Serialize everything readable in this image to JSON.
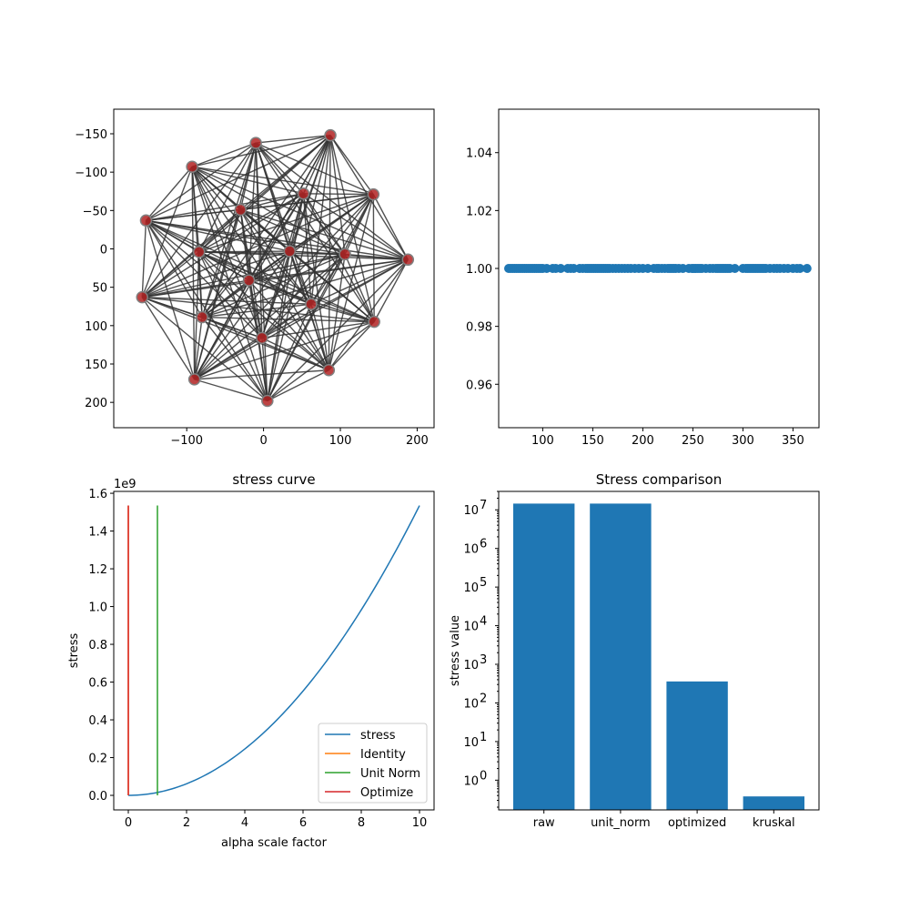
{
  "chart_data": [
    {
      "type": "network",
      "xlim": [
        -195,
        222
      ],
      "ylim": [
        233,
        -182
      ],
      "y_inverted": true,
      "xticks": [
        -100,
        0,
        100,
        200
      ],
      "yticks": [
        -150,
        -100,
        -50,
        0,
        50,
        100,
        150,
        200
      ],
      "node_color": "#b22222",
      "node_edge_color": "#808080",
      "edge_color": "#333333",
      "nodes": [
        [
          -10,
          -138
        ],
        [
          87,
          -148
        ],
        [
          -93,
          -107
        ],
        [
          52,
          -72
        ],
        [
          143,
          -71
        ],
        [
          -30,
          -51
        ],
        [
          -153,
          -37
        ],
        [
          34,
          3
        ],
        [
          -84,
          4
        ],
        [
          106,
          7
        ],
        [
          188,
          14
        ],
        [
          -19,
          41
        ],
        [
          62,
          72
        ],
        [
          -158,
          63
        ],
        [
          -80,
          89
        ],
        [
          144,
          95
        ],
        [
          -2,
          116
        ],
        [
          85,
          158
        ],
        [
          -90,
          170
        ],
        [
          5,
          198
        ]
      ],
      "edges": "fully connected (every pair of nodes)"
    },
    {
      "type": "scatter",
      "xlim": [
        56,
        376
      ],
      "ylim": [
        0.945,
        1.055
      ],
      "xticks": [
        100,
        150,
        200,
        250,
        300,
        350
      ],
      "yticks": [
        0.96,
        0.98,
        1.0,
        1.02,
        1.04
      ],
      "color": "#1f77b4",
      "y_value": 1.0,
      "x": [
        66,
        68,
        70,
        72,
        74,
        76,
        78,
        80,
        82,
        84,
        86,
        88,
        90,
        92,
        94,
        96,
        98,
        100,
        104,
        110,
        113,
        118,
        125,
        128,
        131,
        137,
        140,
        143,
        145,
        147,
        149,
        151,
        153,
        155,
        157,
        159,
        161,
        163,
        165,
        167,
        170,
        173,
        176,
        179,
        182,
        185,
        188,
        192,
        196,
        200,
        205,
        211,
        214,
        216,
        219,
        222,
        225,
        227,
        229,
        231,
        233,
        236,
        240,
        246,
        249,
        251,
        253,
        255,
        257,
        259,
        263,
        267,
        270,
        273,
        275,
        277,
        279,
        281,
        283,
        285,
        287,
        292,
        300,
        303,
        305,
        307,
        309,
        311,
        313,
        315,
        317,
        319,
        321,
        323,
        327,
        331,
        334,
        337,
        341,
        345,
        350,
        354,
        357,
        364
      ]
    },
    {
      "type": "line",
      "title": "stress curve",
      "xlabel": "alpha scale factor",
      "ylabel": "stress",
      "y_offset_label": "1e9",
      "xlim": [
        -0.5,
        10.5
      ],
      "ylim": [
        -0.077,
        1.61
      ],
      "xticks": [
        0,
        2,
        4,
        6,
        8,
        10
      ],
      "yticks": [
        "0.0",
        "0.2",
        "0.4",
        "0.6",
        "0.8",
        "1.0",
        "1.2",
        "1.4",
        "1.6"
      ],
      "series": [
        {
          "name": "stress",
          "color": "#1f77b4",
          "kind": "curve",
          "coefficient": 0.01535,
          "x_range": [
            0,
            10
          ]
        },
        {
          "name": "Identity",
          "color": "#ff7f0e",
          "kind": "vline",
          "x": 0,
          "y_range": [
            0,
            1.535
          ]
        },
        {
          "name": "Unit Norm",
          "color": "#2ca02c",
          "kind": "vline",
          "x": 1.0,
          "y_range": [
            0,
            1.535
          ]
        },
        {
          "name": "Optimize",
          "color": "#d62728",
          "kind": "vline",
          "x": 0.0005,
          "y_range": [
            0,
            1.535
          ]
        }
      ],
      "legend_position": "lower-right"
    },
    {
      "type": "bar",
      "title": "Stress comparison",
      "ylabel": "stress value",
      "yscale": "log",
      "ylim": [
        0.17,
        30000000
      ],
      "categories": [
        "raw",
        "unit_norm",
        "optimized",
        "kruskal"
      ],
      "values": [
        14500000,
        14500000,
        360,
        0.38
      ],
      "color": "#1f77b4",
      "ytick_exponents": [
        0,
        1,
        2,
        3,
        4,
        5,
        6,
        7
      ]
    }
  ]
}
